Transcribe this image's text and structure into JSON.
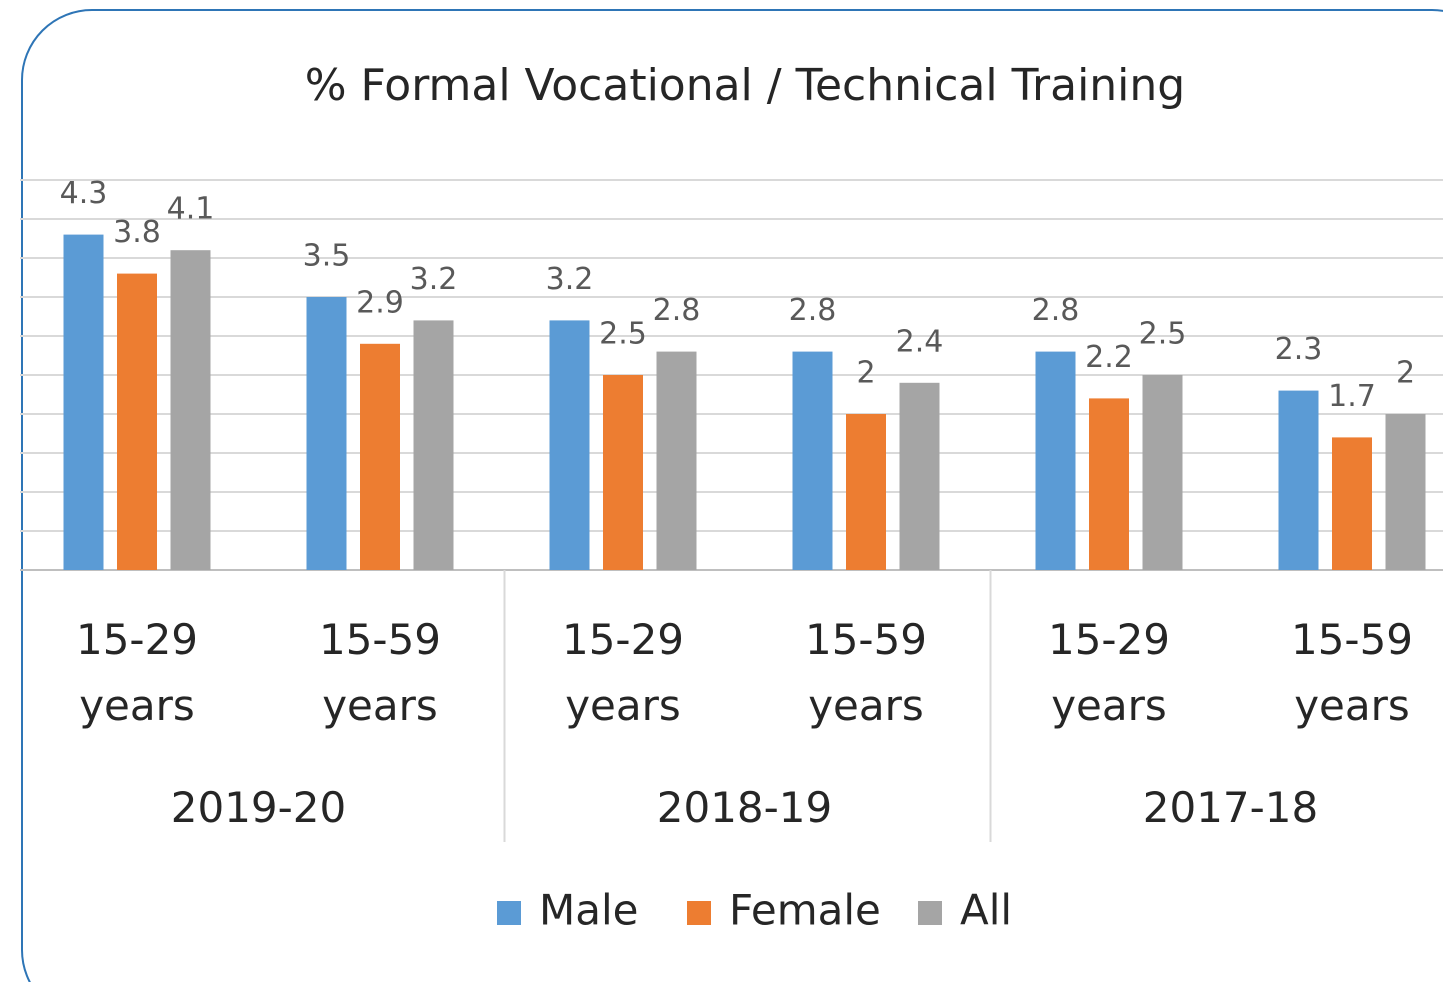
{
  "chart_data": {
    "type": "bar",
    "title": "% Formal Vocational / Technical Training",
    "categories": [
      "15-29 years",
      "15-59 years",
      "15-29 years",
      "15-59 years",
      "15-29 years",
      "15-59 years"
    ],
    "category_groups": [
      "2019-20",
      "2018-19",
      "2017-18"
    ],
    "series": [
      {
        "name": "Male",
        "color": "#5b9bd5",
        "values": [
          4.3,
          3.5,
          3.2,
          2.8,
          2.8,
          2.3
        ]
      },
      {
        "name": "Female",
        "color": "#ed7d31",
        "values": [
          3.8,
          2.9,
          2.5,
          2,
          2.2,
          1.7
        ]
      },
      {
        "name": "All",
        "color": "#a5a5a5",
        "values": [
          4.1,
          3.2,
          2.8,
          2.4,
          2.5,
          2
        ]
      }
    ],
    "ylim": [
      0,
      5
    ],
    "yticks": [
      0,
      0.5,
      1,
      1.5,
      2,
      2.5,
      3,
      3.5,
      4,
      4.5,
      5
    ],
    "ytick_labels": false,
    "grid": true,
    "legend": "bottom"
  }
}
